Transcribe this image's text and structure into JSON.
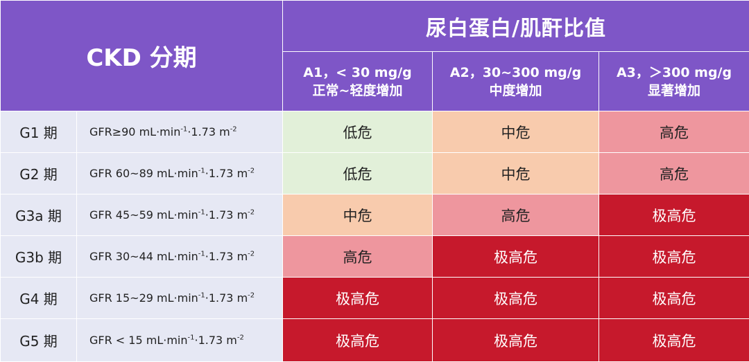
{
  "header": {
    "ckd_label": "CKD 分期",
    "acr_title": "尿白蛋白/肌酐比值",
    "columns": [
      {
        "line1": "A1，< 30 mg/g",
        "line2": "正常~轻度增加"
      },
      {
        "line1": "A2，30~300 mg/g",
        "line2": "中度增加"
      },
      {
        "line1": "A3，＞300 mg/g",
        "line2": "显著增加"
      }
    ]
  },
  "rows": [
    {
      "stage": "G1 期",
      "gfr_main": "GFR≥90 mL·min",
      "gfr_exp1": "-1",
      "gfr_mid": "·1.73 m",
      "gfr_exp2": "-2",
      "risks": [
        "低危",
        "中危",
        "高危"
      ]
    },
    {
      "stage": "G2 期",
      "gfr_main": "GFR 60~89 mL·min",
      "gfr_exp1": "-1",
      "gfr_mid": "·1.73 m",
      "gfr_exp2": "-2",
      "risks": [
        "低危",
        "中危",
        "高危"
      ]
    },
    {
      "stage": "G3a 期",
      "gfr_main": "GFR 45~59 mL·min",
      "gfr_exp1": "-1",
      "gfr_mid": "·1.73 m",
      "gfr_exp2": "-2",
      "risks": [
        "中危",
        "高危",
        "极高危"
      ]
    },
    {
      "stage": "G3b 期",
      "gfr_main": "GFR 30~44 mL·min",
      "gfr_exp1": "-1",
      "gfr_mid": "·1.73 m",
      "gfr_exp2": "-2",
      "risks": [
        "高危",
        "极高危",
        "极高危"
      ]
    },
    {
      "stage": "G4 期",
      "gfr_main": "GFR 15~29 mL·min",
      "gfr_exp1": "-1",
      "gfr_mid": "·1.73 m",
      "gfr_exp2": "-2",
      "risks": [
        "极高危",
        "极高危",
        "极高危"
      ]
    },
    {
      "stage": "G5 期",
      "gfr_main": "GFR < 15 mL·min",
      "gfr_exp1": "-1",
      "gfr_mid": "·1.73 m",
      "gfr_exp2": "-2",
      "risks": [
        "极高危",
        "极高危",
        "极高危"
      ]
    }
  ],
  "colors": {
    "header": "#7E56C7",
    "stage_bg": "#E6E8F4",
    "low": "#E2F0D9",
    "mid": "#F8CBAD",
    "high": "#EE969E",
    "very_high": "#C6192C"
  }
}
